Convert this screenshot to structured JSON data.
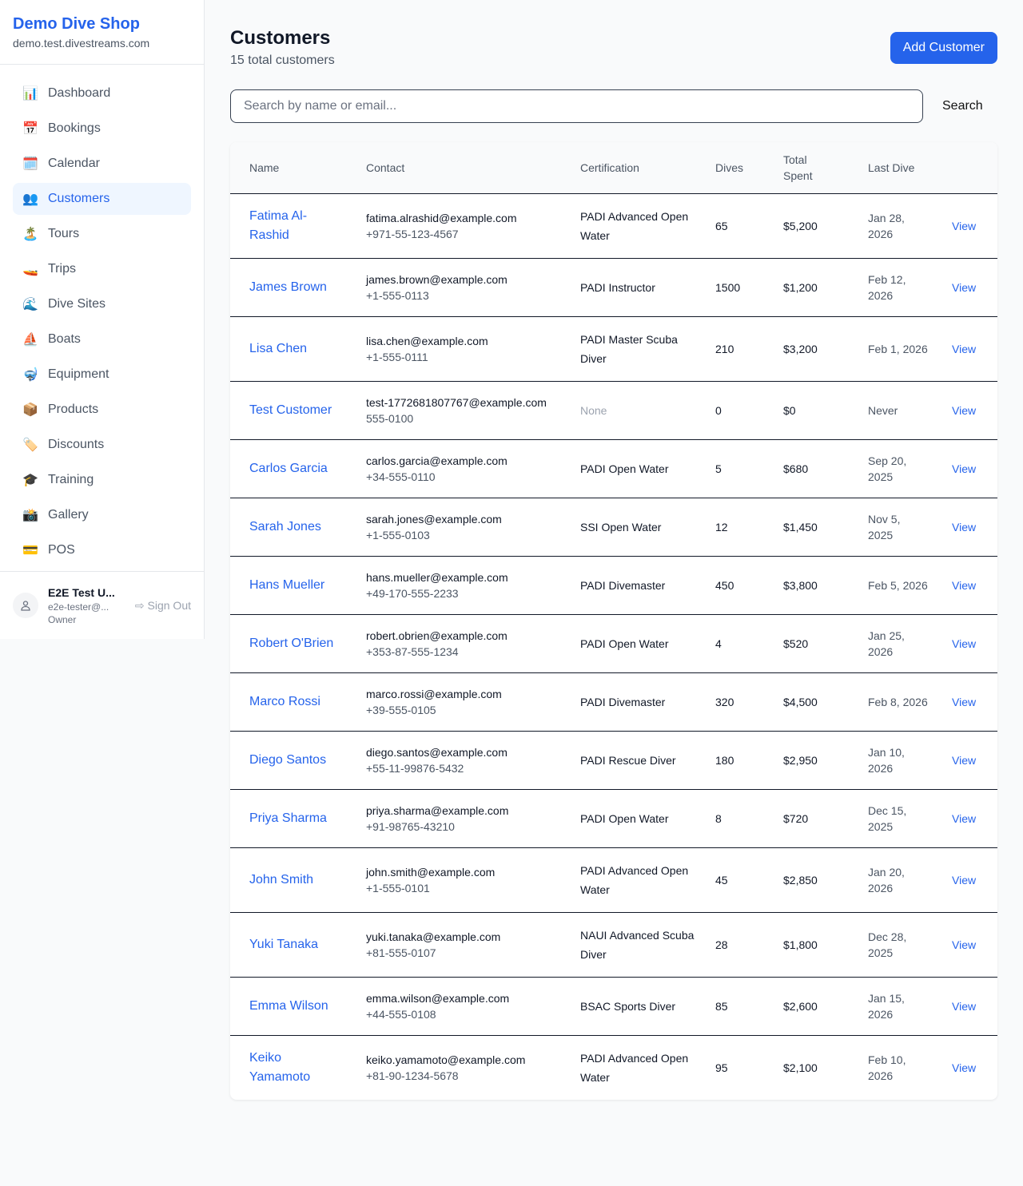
{
  "brand": {
    "name": "Demo Dive Shop",
    "domain": "demo.test.divestreams.com"
  },
  "nav": [
    {
      "label": "Dashboard",
      "icon": "📊",
      "active": false
    },
    {
      "label": "Bookings",
      "icon": "📅",
      "active": false
    },
    {
      "label": "Calendar",
      "icon": "🗓️",
      "active": false
    },
    {
      "label": "Customers",
      "icon": "👥",
      "active": true
    },
    {
      "label": "Tours",
      "icon": "🏝️",
      "active": false
    },
    {
      "label": "Trips",
      "icon": "🚤",
      "active": false
    },
    {
      "label": "Dive Sites",
      "icon": "🌊",
      "active": false
    },
    {
      "label": "Boats",
      "icon": "⛵",
      "active": false
    },
    {
      "label": "Equipment",
      "icon": "🤿",
      "active": false
    },
    {
      "label": "Products",
      "icon": "📦",
      "active": false
    },
    {
      "label": "Discounts",
      "icon": "🏷️",
      "active": false
    },
    {
      "label": "Training",
      "icon": "🎓",
      "active": false
    },
    {
      "label": "Gallery",
      "icon": "📸",
      "active": false
    },
    {
      "label": "POS",
      "icon": "💳",
      "active": false
    }
  ],
  "user": {
    "name": "E2E Test U...",
    "email": "e2e-tester@...",
    "role": "Owner",
    "sign_out": "Sign Out"
  },
  "page": {
    "title": "Customers",
    "subtitle": "15 total customers",
    "add_button": "Add Customer",
    "search_placeholder": "Search by name or email...",
    "search_button": "Search"
  },
  "columns": [
    "Name",
    "Contact",
    "Certification",
    "Dives",
    "Total Spent",
    "Last Dive",
    ""
  ],
  "view_label": "View",
  "customers": [
    {
      "name": "Fatima Al-Rashid",
      "email": "fatima.alrashid@example.com",
      "phone": "+971-55-123-4567",
      "cert": "PADI Advanced Open Water",
      "dives": "65",
      "spent": "$5,200",
      "last": "Jan 28, 2026"
    },
    {
      "name": "James Brown",
      "email": "james.brown@example.com",
      "phone": "+1-555-0113",
      "cert": "PADI Instructor",
      "dives": "1500",
      "spent": "$1,200",
      "last": "Feb 12, 2026"
    },
    {
      "name": "Lisa Chen",
      "email": "lisa.chen@example.com",
      "phone": "+1-555-0111",
      "cert": "PADI Master Scuba Diver",
      "dives": "210",
      "spent": "$3,200",
      "last": "Feb 1, 2026"
    },
    {
      "name": "Test Customer",
      "email": "test-1772681807767@example.com",
      "phone": "555-0100",
      "cert": "None",
      "dives": "0",
      "spent": "$0",
      "last": "Never"
    },
    {
      "name": "Carlos Garcia",
      "email": "carlos.garcia@example.com",
      "phone": "+34-555-0110",
      "cert": "PADI Open Water",
      "dives": "5",
      "spent": "$680",
      "last": "Sep 20, 2025"
    },
    {
      "name": "Sarah Jones",
      "email": "sarah.jones@example.com",
      "phone": "+1-555-0103",
      "cert": "SSI Open Water",
      "dives": "12",
      "spent": "$1,450",
      "last": "Nov 5, 2025"
    },
    {
      "name": "Hans Mueller",
      "email": "hans.mueller@example.com",
      "phone": "+49-170-555-2233",
      "cert": "PADI Divemaster",
      "dives": "450",
      "spent": "$3,800",
      "last": "Feb 5, 2026"
    },
    {
      "name": "Robert O'Brien",
      "email": "robert.obrien@example.com",
      "phone": "+353-87-555-1234",
      "cert": "PADI Open Water",
      "dives": "4",
      "spent": "$520",
      "last": "Jan 25, 2026"
    },
    {
      "name": "Marco Rossi",
      "email": "marco.rossi@example.com",
      "phone": "+39-555-0105",
      "cert": "PADI Divemaster",
      "dives": "320",
      "spent": "$4,500",
      "last": "Feb 8, 2026"
    },
    {
      "name": "Diego Santos",
      "email": "diego.santos@example.com",
      "phone": "+55-11-99876-5432",
      "cert": "PADI Rescue Diver",
      "dives": "180",
      "spent": "$2,950",
      "last": "Jan 10, 2026"
    },
    {
      "name": "Priya Sharma",
      "email": "priya.sharma@example.com",
      "phone": "+91-98765-43210",
      "cert": "PADI Open Water",
      "dives": "8",
      "spent": "$720",
      "last": "Dec 15, 2025"
    },
    {
      "name": "John Smith",
      "email": "john.smith@example.com",
      "phone": "+1-555-0101",
      "cert": "PADI Advanced Open Water",
      "dives": "45",
      "spent": "$2,850",
      "last": "Jan 20, 2026"
    },
    {
      "name": "Yuki Tanaka",
      "email": "yuki.tanaka@example.com",
      "phone": "+81-555-0107",
      "cert": "NAUI Advanced Scuba Diver",
      "dives": "28",
      "spent": "$1,800",
      "last": "Dec 28, 2025"
    },
    {
      "name": "Emma Wilson",
      "email": "emma.wilson@example.com",
      "phone": "+44-555-0108",
      "cert": "BSAC Sports Diver",
      "dives": "85",
      "spent": "$2,600",
      "last": "Jan 15, 2026"
    },
    {
      "name": "Keiko Yamamoto",
      "email": "keiko.yamamoto@example.com",
      "phone": "+81-90-1234-5678",
      "cert": "PADI Advanced Open Water",
      "dives": "95",
      "spent": "$2,100",
      "last": "Feb 10, 2026"
    }
  ]
}
